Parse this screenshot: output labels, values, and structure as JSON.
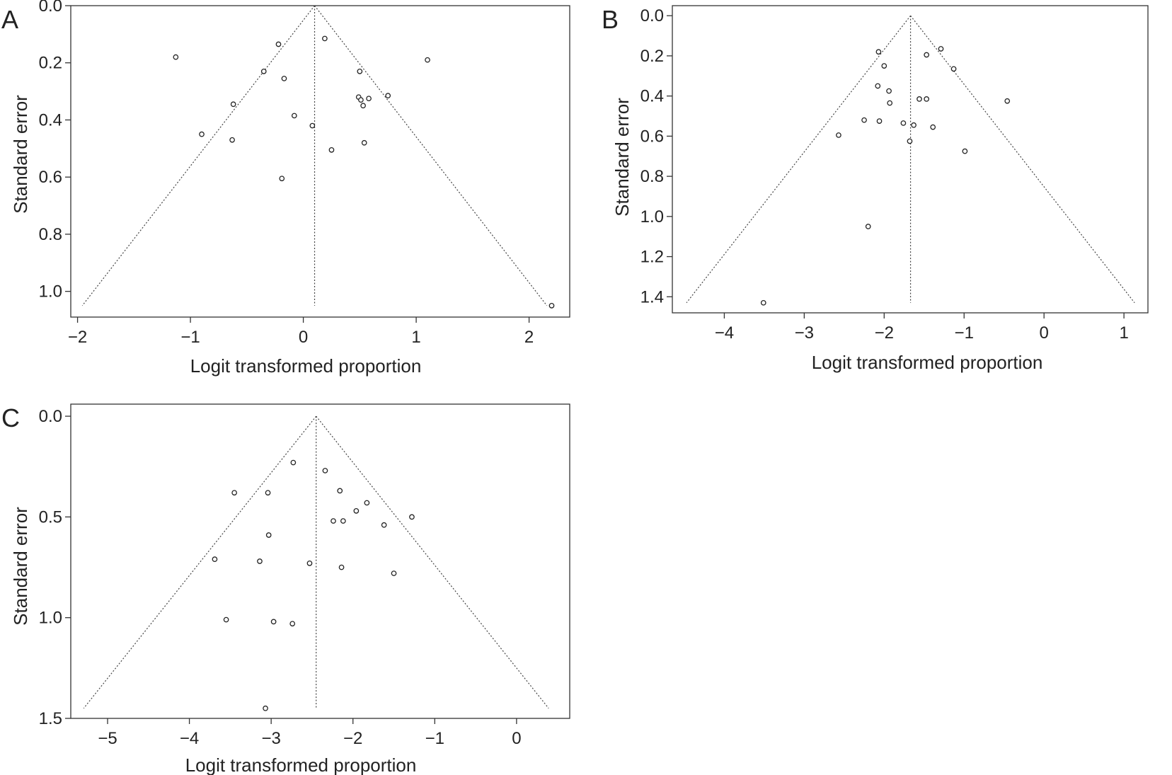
{
  "chart_data": [
    {
      "type": "scatter",
      "panel": "A",
      "xlabel": "Logit transformed proportion",
      "ylabel": "Standard error",
      "xlim": [
        -2.06,
        2.36
      ],
      "ylim": [
        0.0,
        1.09
      ],
      "y_reversed": true,
      "xticks": [
        -2,
        -1,
        0,
        1,
        2
      ],
      "xticklabels": [
        "−2",
        "−1",
        "0",
        "1",
        "2"
      ],
      "yticks": [
        0.0,
        0.2,
        0.4,
        0.6,
        0.8,
        1.0
      ],
      "yticklabels": [
        "0.0",
        "0.2",
        "0.4",
        "0.6",
        "0.8",
        "1.0"
      ],
      "pooled_estimate": 0.1,
      "funnel_se_max": 1.05,
      "grid": false,
      "points": [
        {
          "x": -1.13,
          "y": 0.18
        },
        {
          "x": -0.22,
          "y": 0.135
        },
        {
          "x": 0.19,
          "y": 0.115
        },
        {
          "x": 1.1,
          "y": 0.19
        },
        {
          "x": -0.35,
          "y": 0.23
        },
        {
          "x": 0.5,
          "y": 0.23
        },
        {
          "x": -0.17,
          "y": 0.255
        },
        {
          "x": 0.75,
          "y": 0.315
        },
        {
          "x": 0.49,
          "y": 0.32
        },
        {
          "x": 0.58,
          "y": 0.325
        },
        {
          "x": 0.51,
          "y": 0.33
        },
        {
          "x": -0.62,
          "y": 0.345
        },
        {
          "x": 0.53,
          "y": 0.35
        },
        {
          "x": -0.08,
          "y": 0.385
        },
        {
          "x": 0.08,
          "y": 0.42
        },
        {
          "x": -0.9,
          "y": 0.45
        },
        {
          "x": -0.63,
          "y": 0.47
        },
        {
          "x": 0.54,
          "y": 0.48
        },
        {
          "x": 0.25,
          "y": 0.505
        },
        {
          "x": -0.19,
          "y": 0.605
        },
        {
          "x": 2.2,
          "y": 1.05
        }
      ]
    },
    {
      "type": "scatter",
      "panel": "B",
      "xlabel": "Logit transformed proportion",
      "ylabel": "Standard error",
      "xlim": [
        -4.65,
        1.3
      ],
      "ylim": [
        -0.05,
        1.48
      ],
      "y_reversed": true,
      "xticks": [
        -4,
        -3,
        -2,
        -1,
        0,
        1
      ],
      "xticklabels": [
        "−4",
        "−3",
        "−2",
        "−1",
        "0",
        "1"
      ],
      "yticks": [
        0.0,
        0.2,
        0.4,
        0.6,
        0.8,
        1.0,
        1.2,
        1.4
      ],
      "yticklabels": [
        "0.0",
        "0.2",
        "0.4",
        "0.6",
        "0.8",
        "1.0",
        "1.2",
        "1.4"
      ],
      "pooled_estimate": -1.67,
      "funnel_se_max": 1.43,
      "grid": false,
      "points": [
        {
          "x": -1.29,
          "y": 0.165
        },
        {
          "x": -2.07,
          "y": 0.18
        },
        {
          "x": -1.47,
          "y": 0.195
        },
        {
          "x": -2.0,
          "y": 0.25
        },
        {
          "x": -1.13,
          "y": 0.265
        },
        {
          "x": -2.08,
          "y": 0.35
        },
        {
          "x": -1.94,
          "y": 0.375
        },
        {
          "x": -1.56,
          "y": 0.415
        },
        {
          "x": -1.47,
          "y": 0.415
        },
        {
          "x": -0.46,
          "y": 0.425
        },
        {
          "x": -1.93,
          "y": 0.435
        },
        {
          "x": -2.25,
          "y": 0.52
        },
        {
          "x": -2.06,
          "y": 0.525
        },
        {
          "x": -1.76,
          "y": 0.535
        },
        {
          "x": -1.63,
          "y": 0.545
        },
        {
          "x": -1.39,
          "y": 0.555
        },
        {
          "x": -2.57,
          "y": 0.595
        },
        {
          "x": -1.68,
          "y": 0.625
        },
        {
          "x": -0.99,
          "y": 0.675
        },
        {
          "x": -2.2,
          "y": 1.05
        },
        {
          "x": -3.51,
          "y": 1.43
        }
      ]
    },
    {
      "type": "scatter",
      "panel": "C",
      "xlabel": "Logit transformed proportion",
      "ylabel": "Standard error",
      "xlim": [
        -5.45,
        0.65
      ],
      "ylim": [
        -0.06,
        1.5
      ],
      "y_reversed": true,
      "xticks": [
        -5,
        -4,
        -3,
        -2,
        -1,
        0
      ],
      "xticklabels": [
        "−5",
        "−4",
        "−3",
        "−2",
        "−1",
        "0"
      ],
      "yticks": [
        0.0,
        0.5,
        1.0,
        1.5
      ],
      "yticklabels": [
        "0.0",
        "0.5",
        "1.0",
        "1.5"
      ],
      "pooled_estimate": -2.45,
      "funnel_se_max": 1.45,
      "grid": false,
      "points": [
        {
          "x": -2.73,
          "y": 0.23
        },
        {
          "x": -2.34,
          "y": 0.27
        },
        {
          "x": -3.45,
          "y": 0.38
        },
        {
          "x": -3.04,
          "y": 0.38
        },
        {
          "x": -2.16,
          "y": 0.37
        },
        {
          "x": -1.83,
          "y": 0.43
        },
        {
          "x": -1.96,
          "y": 0.47
        },
        {
          "x": -1.28,
          "y": 0.5
        },
        {
          "x": -2.24,
          "y": 0.52
        },
        {
          "x": -2.12,
          "y": 0.52
        },
        {
          "x": -1.62,
          "y": 0.54
        },
        {
          "x": -3.03,
          "y": 0.59
        },
        {
          "x": -3.69,
          "y": 0.71
        },
        {
          "x": -3.14,
          "y": 0.72
        },
        {
          "x": -2.53,
          "y": 0.73
        },
        {
          "x": -2.14,
          "y": 0.75
        },
        {
          "x": -1.5,
          "y": 0.78
        },
        {
          "x": -3.55,
          "y": 1.01
        },
        {
          "x": -2.97,
          "y": 1.02
        },
        {
          "x": -2.74,
          "y": 1.03
        },
        {
          "x": -3.07,
          "y": 1.45
        }
      ]
    }
  ]
}
